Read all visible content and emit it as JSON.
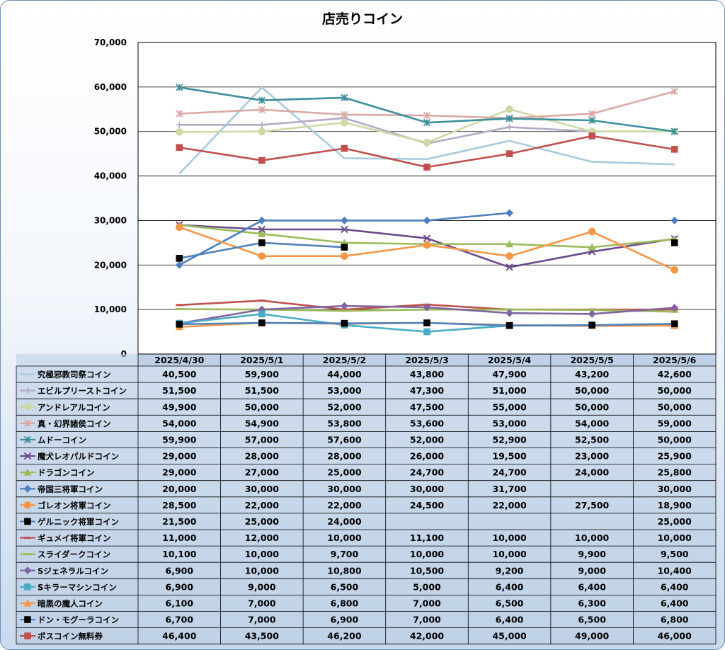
{
  "chart_data": {
    "type": "line",
    "title": "店売りコイン",
    "categories": [
      "2025/4/30",
      "2025/5/1",
      "2025/5/2",
      "2025/5/3",
      "2025/5/4",
      "2025/5/5",
      "2025/5/6"
    ],
    "ylim": [
      0,
      70000
    ],
    "yticks": [
      0,
      10000,
      20000,
      30000,
      40000,
      50000,
      60000,
      70000
    ],
    "ytick_labels": [
      "0",
      "10,000",
      "20,000",
      "30,000",
      "40,000",
      "50,000",
      "60,000",
      "70,000"
    ],
    "grid": true,
    "legend": "data-table",
    "series": [
      {
        "name": "究極邪教司祭コイン",
        "color": "#a8cadb",
        "marker": "none",
        "values": [
          40500,
          59900,
          44000,
          43800,
          47900,
          43200,
          42600
        ],
        "labels": [
          "40,500",
          "59,900",
          "44,000",
          "43,800",
          "47,900",
          "43,200",
          "42,600"
        ]
      },
      {
        "name": "エビルプリーストコイン",
        "color": "#b7a9c9",
        "marker": "plus",
        "values": [
          51500,
          51500,
          53000,
          47300,
          51000,
          50000,
          50000
        ],
        "labels": [
          "51,500",
          "51,500",
          "53,000",
          "47,300",
          "51,000",
          "50,000",
          "50,000"
        ]
      },
      {
        "name": "アンドレアルコイン",
        "color": "#cdd9a5",
        "marker": "circle",
        "values": [
          49900,
          50000,
          52000,
          47500,
          55000,
          50000,
          50000
        ],
        "labels": [
          "49,900",
          "50,000",
          "52,000",
          "47,500",
          "55,000",
          "50,000",
          "50,000"
        ]
      },
      {
        "name": "真・幻界諸侯コイン",
        "color": "#dba9a5",
        "marker": "star",
        "values": [
          54000,
          54900,
          53800,
          53600,
          53000,
          54000,
          59000
        ],
        "labels": [
          "54,000",
          "54,900",
          "53,800",
          "53,600",
          "53,000",
          "54,000",
          "59,000"
        ]
      },
      {
        "name": "ムドーコイン",
        "color": "#3d8f9c",
        "marker": "star",
        "values": [
          59900,
          57000,
          57600,
          52000,
          52900,
          52500,
          50000
        ],
        "labels": [
          "59,900",
          "57,000",
          "57,600",
          "52,000",
          "52,900",
          "52,500",
          "50,000"
        ]
      },
      {
        "name": "魔犬レオパルドコイン",
        "color": "#6b4a8c",
        "marker": "x",
        "values": [
          29000,
          28000,
          28000,
          26000,
          19500,
          23000,
          25900
        ],
        "labels": [
          "29,000",
          "28,000",
          "28,000",
          "26,000",
          "19,500",
          "23,000",
          "25,900"
        ]
      },
      {
        "name": "ドラゴンコイン",
        "color": "#9bbb59",
        "marker": "triangle",
        "values": [
          29000,
          27000,
          25000,
          24700,
          24700,
          24000,
          25800
        ],
        "labels": [
          "29,000",
          "27,000",
          "25,000",
          "24,700",
          "24,700",
          "24,000",
          "25,800"
        ]
      },
      {
        "name": "帝国三将軍コイン",
        "color": "#4f7fc0",
        "marker": "diamond",
        "values": [
          20000,
          30000,
          30000,
          30000,
          31700,
          null,
          30000
        ],
        "labels": [
          "20,000",
          "30,000",
          "30,000",
          "30,000",
          "31,700",
          "",
          "30,000"
        ]
      },
      {
        "name": "ゴレオン将軍コイン",
        "color": "#f79646",
        "marker": "circle",
        "values": [
          28500,
          22000,
          22000,
          24500,
          22000,
          27500,
          18900
        ],
        "labels": [
          "28,500",
          "22,000",
          "22,000",
          "24,500",
          "22,000",
          "27,500",
          "18,900"
        ]
      },
      {
        "name": "ゲルニック将軍コイン",
        "color": "#000000",
        "line": "#4f81bd",
        "marker": "square",
        "values": [
          21500,
          25000,
          24000,
          null,
          null,
          null,
          25000
        ],
        "labels": [
          "21,500",
          "25,000",
          "24,000",
          "",
          "",
          "",
          "25,000"
        ]
      },
      {
        "name": "ギュメイ将軍コイン",
        "color": "#c0504d",
        "marker": "dash",
        "values": [
          11000,
          12000,
          10000,
          11100,
          10000,
          10000,
          10000
        ],
        "labels": [
          "11,000",
          "12,000",
          "10,000",
          "11,100",
          "10,000",
          "10,000",
          "10,000"
        ]
      },
      {
        "name": "スライダークコイン",
        "color": "#9bbb59",
        "marker": "dash",
        "values": [
          10100,
          10000,
          9700,
          10000,
          10000,
          9900,
          9500
        ],
        "labels": [
          "10,100",
          "10,000",
          "9,700",
          "10,000",
          "10,000",
          "9,900",
          "9,500"
        ]
      },
      {
        "name": "Sジェネラルコイン",
        "color": "#8064a2",
        "marker": "diamond",
        "values": [
          6900,
          10000,
          10800,
          10500,
          9200,
          9000,
          10400
        ],
        "labels": [
          "6,900",
          "10,000",
          "10,800",
          "10,500",
          "9,200",
          "9,000",
          "10,400"
        ]
      },
      {
        "name": "Sキラーマシンコイン",
        "color": "#4bacc6",
        "marker": "square",
        "values": [
          6900,
          9000,
          6500,
          5000,
          6400,
          6400,
          6400
        ],
        "labels": [
          "6,900",
          "9,000",
          "6,500",
          "5,000",
          "6,400",
          "6,400",
          "6,400"
        ]
      },
      {
        "name": "暗黒の魔人コイン",
        "color": "#f79646",
        "marker": "triangle",
        "values": [
          6100,
          7000,
          6800,
          7000,
          6500,
          6300,
          6400
        ],
        "labels": [
          "6,100",
          "7,000",
          "6,800",
          "7,000",
          "6,500",
          "6,300",
          "6,400"
        ]
      },
      {
        "name": "ドン・モグーラコイン",
        "color": "#000000",
        "line": "#4f81bd",
        "marker": "square",
        "values": [
          6700,
          7000,
          6900,
          7000,
          6400,
          6500,
          6800
        ],
        "labels": [
          "6,700",
          "7,000",
          "6,900",
          "7,000",
          "6,400",
          "6,500",
          "6,800"
        ]
      },
      {
        "name": "ボスコイン無料券",
        "color": "#c0504d",
        "marker": "square",
        "values": [
          46400,
          43500,
          46200,
          42000,
          45000,
          49000,
          46000
        ],
        "labels": [
          "46,400",
          "43,500",
          "46,200",
          "42,000",
          "45,000",
          "49,000",
          "46,000"
        ]
      }
    ]
  }
}
